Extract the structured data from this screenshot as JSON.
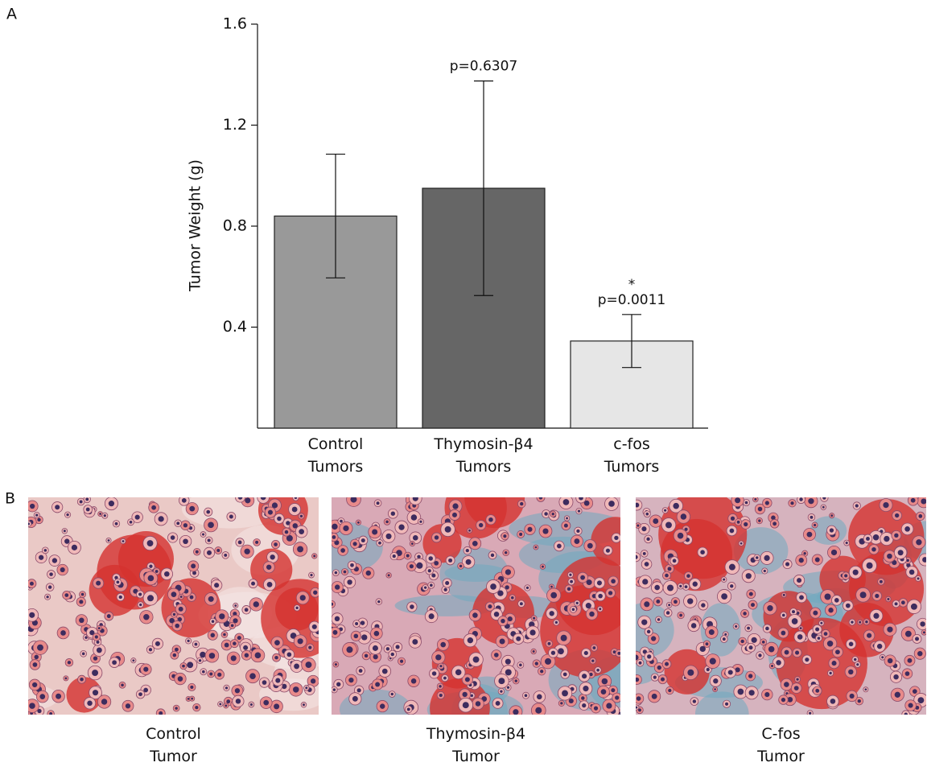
{
  "panel_labels": [
    "A",
    "B"
  ],
  "chart_data": {
    "type": "bar",
    "y_label": "Tumor Weight (g)",
    "categories": [
      "Control\nTumors",
      "Thymosin-β4\nTumors",
      "c-fos\nTumors"
    ],
    "values": [
      0.84,
      0.95,
      0.345
    ],
    "errors": [
      0.245,
      0.425,
      0.105
    ],
    "colors": [
      "#999999",
      "#666666",
      "#e6e6e6"
    ],
    "ylim": [
      0,
      1.6
    ],
    "yticks": [
      0.4,
      0.8,
      1.2,
      1.6
    ],
    "annotations": [
      {
        "category": 1,
        "lines": [
          "p=0.6307"
        ]
      },
      {
        "category": 2,
        "lines": [
          "*",
          "p=0.0011"
        ]
      }
    ]
  },
  "images": {
    "captions": [
      "Control\nTumor",
      "Thymosin-β4\nTumor",
      "C-fos\nTumor"
    ]
  }
}
